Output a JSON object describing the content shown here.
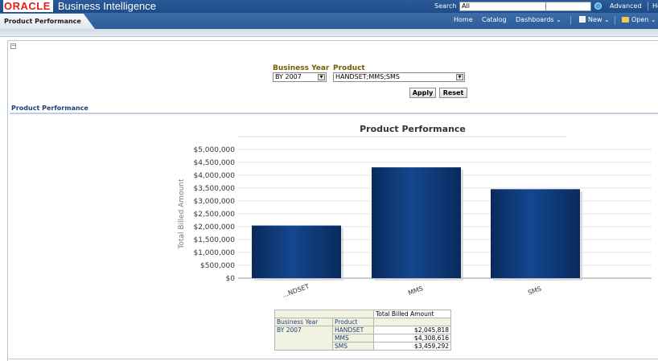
{
  "header": {
    "brand_oracle": "ORACLE",
    "brand_bi": "Business Intelligence",
    "search_label": "Search",
    "search_scope": "All",
    "advanced": "Advanced",
    "help": "He"
  },
  "tabs": {
    "active": "Product Performance"
  },
  "nav": {
    "home": "Home",
    "catalog": "Catalog",
    "dashboards": "Dashboards ⌄",
    "new": "New ⌄",
    "open": "Open ⌄"
  },
  "prompts": {
    "business_year_label": "Business Year",
    "business_year_value": "BY 2007",
    "product_label": "Product",
    "product_value": "HANDSET;MMS;SMS",
    "apply": "Apply",
    "reset": "Reset"
  },
  "section": {
    "title": "Product Performance"
  },
  "chart_data": {
    "type": "bar",
    "title": "Product Performance",
    "ylabel": "Total Billed Amount",
    "categories": [
      "HANDSET",
      "MMS",
      "SMS"
    ],
    "category_tick_labels": [
      "...NDSET",
      "MMS",
      "SMS"
    ],
    "values": [
      2045818,
      4308616,
      3459292
    ],
    "ylim": [
      0,
      5000000
    ],
    "yticks": [
      "$0",
      "$500,000",
      "$1,000,000",
      "$1,500,000",
      "$2,000,000",
      "$2,500,000",
      "$3,000,000",
      "$3,500,000",
      "$4,000,000",
      "$4,500,000",
      "$5,000,000"
    ],
    "bar_color": "#0d3570"
  },
  "table": {
    "measure_header": "Total Billed Amount",
    "col_business_year": "Business Year",
    "col_product": "Product",
    "year": "BY 2007",
    "rows": [
      {
        "product": "HANDSET",
        "amount": "$2,045,818"
      },
      {
        "product": "MMS",
        "amount": "$4,308,616"
      },
      {
        "product": "SMS",
        "amount": "$3,459,292"
      }
    ]
  }
}
